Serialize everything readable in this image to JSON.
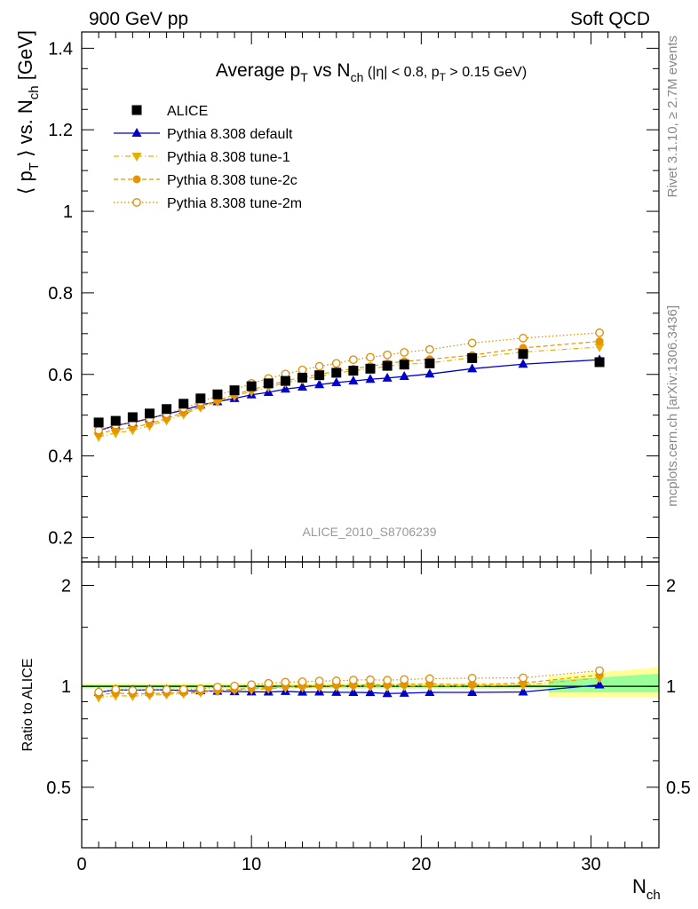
{
  "header": {
    "left": "900 GeV pp",
    "right": "Soft QCD"
  },
  "side_labels": {
    "rivet": "Rivet 3.1.10, ≥ 2.7M events",
    "mcplots": "mcplots.cern.ch [arXiv:1306.3436]"
  },
  "colors": {
    "alice": "#000000",
    "default": "#0000cc",
    "tune1": "#e6b000",
    "tune2c": "#e69500",
    "tune2m": "#e08a00",
    "band_inner": "#99ff99",
    "band_outer": "#ffff99"
  },
  "chart_data": [
    {
      "type": "scatter",
      "title": {
        "main": "Average p",
        "sub1": "T",
        "mid": " vs N",
        "sub2": "ch",
        "cut1": " (|η| < 0.8, p",
        "cut_sub": "T",
        "cut2": " > 0.15 GeV)"
      },
      "ylabel": {
        "a": "⟨ p",
        "sub1": "T",
        "b": " ⟩ vs. N",
        "sub2": "ch",
        "c": " [GeV]"
      },
      "watermark": "ALICE_2010_S8706239",
      "xlim": [
        0,
        34
      ],
      "ylim": [
        0.14,
        1.44
      ],
      "yticks": [
        "0.2",
        "0.4",
        "0.6",
        "0.8",
        "1",
        "1.2",
        "1.4"
      ],
      "legend_position": "top-left",
      "x": [
        1,
        2,
        3,
        4,
        5,
        6,
        7,
        8,
        9,
        10,
        11,
        12,
        13,
        14,
        15,
        16,
        17,
        18,
        19,
        20.5,
        23,
        26,
        30.5
      ],
      "series": [
        {
          "name": "ALICE",
          "style": "marker",
          "values": [
            0.482,
            0.486,
            0.495,
            0.504,
            0.515,
            0.528,
            0.541,
            0.551,
            0.561,
            0.571,
            0.578,
            0.584,
            0.592,
            0.598,
            0.604,
            0.609,
            0.614,
            0.621,
            0.624,
            0.627,
            0.64,
            0.65,
            0.63
          ]
        },
        {
          "name": "Pythia 8.308 default",
          "style": "solid",
          "values": [
            0.462,
            0.475,
            0.482,
            0.492,
            0.503,
            0.512,
            0.525,
            0.533,
            0.541,
            0.55,
            0.556,
            0.564,
            0.569,
            0.575,
            0.58,
            0.584,
            0.588,
            0.591,
            0.595,
            0.601,
            0.614,
            0.625,
            0.636
          ]
        },
        {
          "name": "Pythia 8.308 tune-1",
          "style": "dashdot",
          "values": [
            0.447,
            0.456,
            0.463,
            0.474,
            0.487,
            0.502,
            0.519,
            0.533,
            0.547,
            0.558,
            0.569,
            0.579,
            0.588,
            0.595,
            0.603,
            0.609,
            0.614,
            0.62,
            0.625,
            0.628,
            0.641,
            0.655,
            0.667
          ]
        },
        {
          "name": "Pythia 8.308 tune-2c",
          "style": "dashed",
          "values": [
            0.455,
            0.464,
            0.47,
            0.479,
            0.492,
            0.506,
            0.522,
            0.536,
            0.55,
            0.563,
            0.573,
            0.584,
            0.593,
            0.6,
            0.608,
            0.614,
            0.62,
            0.627,
            0.632,
            0.637,
            0.647,
            0.665,
            0.681
          ]
        },
        {
          "name": "Pythia 8.308 tune-2m",
          "style": "dotted",
          "values": [
            0.463,
            0.476,
            0.481,
            0.491,
            0.503,
            0.517,
            0.532,
            0.548,
            0.562,
            0.578,
            0.59,
            0.601,
            0.611,
            0.62,
            0.627,
            0.636,
            0.642,
            0.648,
            0.654,
            0.661,
            0.677,
            0.689,
            0.702
          ]
        }
      ]
    },
    {
      "type": "scatter",
      "ylabel": "Ratio to ALICE",
      "xlabel": {
        "main": "N",
        "sub": "ch"
      },
      "xlim": [
        0,
        34
      ],
      "ylim": [
        0.33,
        2.35
      ],
      "log_y": true,
      "yticks": [
        "0.5",
        "1",
        "2"
      ],
      "xticks": [
        "0",
        "10",
        "20",
        "30"
      ],
      "band_outer": [
        [
          0,
          0.985,
          1.02
        ],
        [
          27.5,
          0.985,
          1.02
        ],
        [
          27.5,
          0.93,
          1.07
        ],
        [
          34,
          0.93,
          1.14
        ]
      ],
      "band_inner": [
        [
          0,
          0.99,
          1.01
        ],
        [
          27.5,
          0.99,
          1.01
        ],
        [
          27.5,
          0.96,
          1.04
        ],
        [
          34,
          0.96,
          1.09
        ]
      ],
      "x": [
        1,
        2,
        3,
        4,
        5,
        6,
        7,
        8,
        9,
        10,
        11,
        12,
        13,
        14,
        15,
        16,
        17,
        18,
        19,
        20.5,
        23,
        26,
        30.5
      ],
      "series": [
        {
          "name": "Pythia 8.308 default",
          "style": "solid",
          "values": [
            0.96,
            0.977,
            0.974,
            0.976,
            0.977,
            0.97,
            0.97,
            0.967,
            0.964,
            0.963,
            0.962,
            0.966,
            0.961,
            0.962,
            0.96,
            0.959,
            0.958,
            0.952,
            0.954,
            0.959,
            0.959,
            0.962,
            1.01
          ]
        },
        {
          "name": "Pythia 8.308 tune-1",
          "style": "dashdot",
          "values": [
            0.927,
            0.938,
            0.935,
            0.94,
            0.946,
            0.951,
            0.959,
            0.967,
            0.975,
            0.977,
            0.984,
            0.991,
            0.993,
            0.995,
            0.998,
            1.0,
            1.0,
            0.998,
            1.002,
            1.002,
            1.002,
            1.008,
            1.059
          ]
        },
        {
          "name": "Pythia 8.308 tune-2c",
          "style": "dashed",
          "values": [
            0.944,
            0.955,
            0.949,
            0.95,
            0.955,
            0.958,
            0.965,
            0.973,
            0.98,
            0.986,
            0.991,
            1.0,
            1.002,
            1.003,
            1.007,
            1.008,
            1.01,
            1.01,
            1.013,
            1.016,
            1.011,
            1.023,
            1.081
          ]
        },
        {
          "name": "Pythia 8.308 tune-2m",
          "style": "dotted",
          "values": [
            0.961,
            0.979,
            0.972,
            0.974,
            0.977,
            0.979,
            0.983,
            0.995,
            1.002,
            1.012,
            1.021,
            1.029,
            1.032,
            1.037,
            1.038,
            1.044,
            1.046,
            1.043,
            1.048,
            1.054,
            1.058,
            1.06,
            1.114
          ]
        }
      ]
    }
  ]
}
